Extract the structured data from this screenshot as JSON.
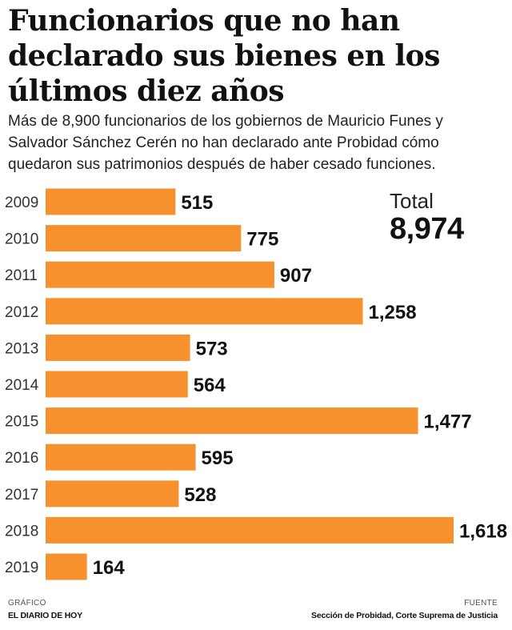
{
  "title": "Funcionarios que no han declarado sus bienes en los últimos diez años",
  "subtitle": "Más de 8,900 funcionarios de los gobiernos de Mauricio Funes y Salvador Sánchez Cerén no han declarado ante Probidad cómo quedaron sus patrimonios después de haber cesado funciones.",
  "total": {
    "label": "Total",
    "value": "8,974"
  },
  "footer": {
    "left_label": "GRÁFICO",
    "left_source": "EL DIARIO DE HOY",
    "right_label": "FUENTE",
    "right_source": "Sección de Probidad, Corte Suprema de Justicia"
  },
  "colors": {
    "bar": "#F7912E",
    "text": "#111111"
  },
  "chart_data": {
    "type": "bar",
    "orientation": "horizontal",
    "categories": [
      "2009",
      "2010",
      "2011",
      "2012",
      "2013",
      "2014",
      "2015",
      "2016",
      "2017",
      "2018",
      "2019"
    ],
    "values": [
      515,
      775,
      907,
      1258,
      573,
      564,
      1477,
      595,
      528,
      1618,
      164
    ],
    "value_labels": [
      "515",
      "775",
      "907",
      "1,258",
      "573",
      "564",
      "1,477",
      "595",
      "528",
      "1,618",
      "164"
    ],
    "xlim": [
      0,
      1618
    ],
    "grid": false,
    "legend": "none"
  }
}
